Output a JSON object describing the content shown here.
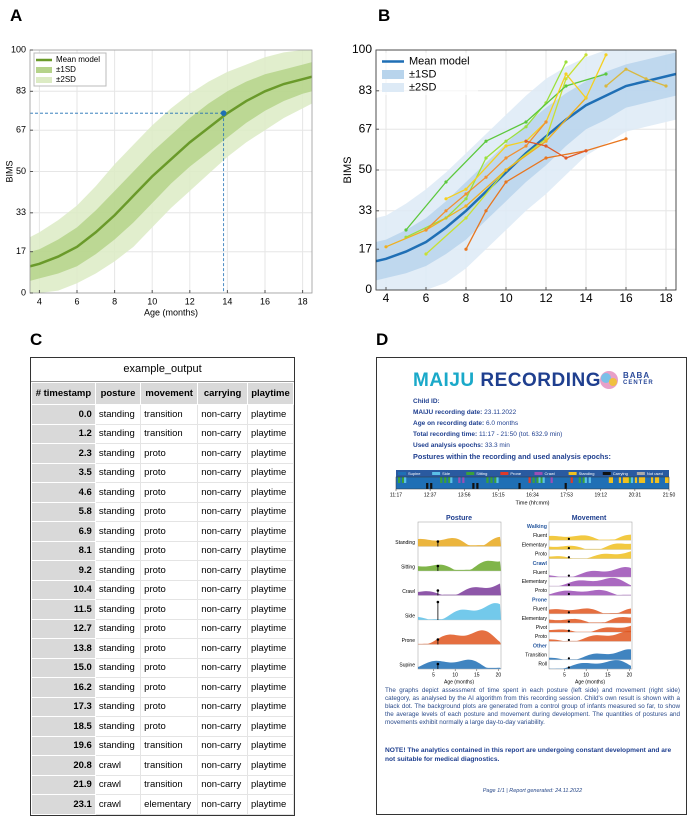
{
  "panel_labels": [
    "A",
    "B",
    "C",
    "D"
  ],
  "chart_data": [
    {
      "type": "line",
      "ylabel": "BIMS",
      "xlabel": "Age (months)",
      "x": [
        3.5,
        4,
        5,
        6,
        7,
        8,
        9,
        10,
        11,
        12,
        13,
        14,
        15,
        16,
        17,
        18,
        18.5
      ],
      "series": [
        {
          "name": "Mean model",
          "color": "#6a9a2a",
          "values": [
            11,
            12,
            15,
            19,
            25,
            32,
            40,
            48,
            55,
            62,
            68,
            74,
            79,
            83,
            86,
            88,
            89
          ]
        },
        {
          "name": "±1SD",
          "color": "#b5d38a",
          "upper": [
            17,
            18,
            22,
            27,
            34,
            42,
            50,
            58,
            65,
            72,
            78,
            83,
            87,
            90,
            92,
            94,
            95
          ],
          "lower": [
            5,
            6,
            8,
            11,
            16,
            22,
            29,
            37,
            45,
            52,
            58,
            64,
            70,
            75,
            79,
            82,
            83
          ]
        },
        {
          "name": "±2SD",
          "color": "#dcebc4",
          "upper": [
            23,
            25,
            30,
            36,
            44,
            53,
            61,
            69,
            76,
            82,
            87,
            91,
            94,
            97,
            99,
            100,
            100
          ],
          "lower": [
            0,
            0,
            1,
            4,
            8,
            13,
            19,
            27,
            35,
            42,
            49,
            56,
            62,
            67,
            72,
            76,
            78
          ]
        }
      ],
      "highlight": {
        "x": 13.8,
        "y": 74,
        "color": "#1f6fb5"
      },
      "xlim": [
        3.5,
        18.5
      ],
      "xticks": [
        4,
        6,
        8,
        10,
        12,
        14,
        16,
        18
      ],
      "ylim": [
        0,
        100
      ],
      "yticks": [
        0,
        17,
        33,
        50,
        67,
        83,
        100
      ],
      "grid": true,
      "legend": "top-left"
    },
    {
      "type": "line",
      "ylabel": "BIMS",
      "x": [
        3.5,
        4,
        5,
        6,
        7,
        8,
        9,
        10,
        11,
        12,
        13,
        14,
        15,
        16,
        17,
        18,
        18.5
      ],
      "series": [
        {
          "name": "Mean model",
          "color": "#1f6fb5",
          "values": [
            12,
            13,
            16,
            20,
            26,
            33,
            41,
            49,
            57,
            64,
            71,
            77,
            81,
            85,
            87,
            89,
            90
          ]
        },
        {
          "name": "±1SD",
          "color": "#b8d4ec",
          "upper": [
            20,
            21,
            25,
            30,
            37,
            45,
            53,
            61,
            69,
            76,
            82,
            87,
            91,
            94,
            96,
            98,
            99
          ],
          "lower": [
            4,
            5,
            7,
            10,
            15,
            21,
            29,
            37,
            45,
            52,
            60,
            67,
            71,
            76,
            78,
            80,
            81
          ]
        },
        {
          "name": "±2SD",
          "color": "#ddeaf6",
          "upper": [
            30,
            31,
            36,
            42,
            49,
            57,
            65,
            73,
            81,
            88,
            93,
            97,
            100,
            100,
            100,
            100,
            100
          ],
          "lower": [
            0,
            0,
            0,
            0,
            3,
            9,
            17,
            25,
            33,
            40,
            48,
            56,
            61,
            66,
            68,
            70,
            71
          ]
        },
        {
          "color": "#9be03c",
          "x": [
            5,
            7,
            8,
            9,
            10,
            11,
            12,
            13
          ],
          "values": [
            22,
            30,
            38,
            55,
            62,
            68,
            78,
            95
          ]
        },
        {
          "color": "#c8e034",
          "x": [
            6,
            8,
            10,
            12,
            13,
            14
          ],
          "values": [
            15,
            30,
            50,
            63,
            88,
            98
          ]
        },
        {
          "color": "#f0b020",
          "x": [
            4,
            6,
            8,
            10,
            12,
            14
          ],
          "values": [
            18,
            25,
            35,
            50,
            62,
            80
          ]
        },
        {
          "color": "#e8761e",
          "x": [
            8,
            9,
            10,
            12,
            14,
            16
          ],
          "values": [
            17,
            33,
            45,
            55,
            58,
            63
          ]
        },
        {
          "color": "#5cc83c",
          "x": [
            5,
            7,
            9,
            11,
            13,
            15
          ],
          "values": [
            25,
            45,
            62,
            70,
            85,
            90
          ]
        },
        {
          "color": "#f5d020",
          "x": [
            7,
            8,
            10,
            11,
            12,
            13,
            14,
            15
          ],
          "values": [
            38,
            42,
            60,
            62,
            70,
            90,
            80,
            98
          ]
        },
        {
          "color": "#f29030",
          "x": [
            6,
            7,
            8,
            9,
            10,
            11,
            12
          ],
          "values": [
            25,
            33,
            40,
            47,
            55,
            60,
            70
          ]
        },
        {
          "color": "#e05a28",
          "x": [
            11,
            12,
            13,
            14
          ],
          "values": [
            62,
            60,
            55,
            58
          ]
        },
        {
          "color": "#d8b840",
          "x": [
            15,
            16,
            17,
            18
          ],
          "values": [
            85,
            92,
            88,
            85
          ]
        }
      ],
      "xlim": [
        3.5,
        18.5
      ],
      "xticks": [
        4,
        6,
        8,
        10,
        12,
        14,
        16,
        18
      ],
      "ylim": [
        0,
        100
      ],
      "yticks": [
        0,
        17,
        33,
        50,
        67,
        83,
        100
      ],
      "grid": true,
      "legend": "top-left"
    }
  ],
  "table": {
    "title": "example_output",
    "columns": [
      "# timestamp",
      "posture",
      "movement",
      "carrying",
      "playtime"
    ],
    "rows": [
      [
        "0.0",
        "standing",
        "transition",
        "non-carry",
        "playtime"
      ],
      [
        "1.2",
        "standing",
        "transition",
        "non-carry",
        "playtime"
      ],
      [
        "2.3",
        "standing",
        "proto",
        "non-carry",
        "playtime"
      ],
      [
        "3.5",
        "standing",
        "proto",
        "non-carry",
        "playtime"
      ],
      [
        "4.6",
        "standing",
        "proto",
        "non-carry",
        "playtime"
      ],
      [
        "5.8",
        "standing",
        "proto",
        "non-carry",
        "playtime"
      ],
      [
        "6.9",
        "standing",
        "proto",
        "non-carry",
        "playtime"
      ],
      [
        "8.1",
        "standing",
        "proto",
        "non-carry",
        "playtime"
      ],
      [
        "9.2",
        "standing",
        "proto",
        "non-carry",
        "playtime"
      ],
      [
        "10.4",
        "standing",
        "proto",
        "non-carry",
        "playtime"
      ],
      [
        "11.5",
        "standing",
        "proto",
        "non-carry",
        "playtime"
      ],
      [
        "12.7",
        "standing",
        "proto",
        "non-carry",
        "playtime"
      ],
      [
        "13.8",
        "standing",
        "proto",
        "non-carry",
        "playtime"
      ],
      [
        "15.0",
        "standing",
        "proto",
        "non-carry",
        "playtime"
      ],
      [
        "16.2",
        "standing",
        "proto",
        "non-carry",
        "playtime"
      ],
      [
        "17.3",
        "standing",
        "proto",
        "non-carry",
        "playtime"
      ],
      [
        "18.5",
        "standing",
        "proto",
        "non-carry",
        "playtime"
      ],
      [
        "19.6",
        "standing",
        "transition",
        "non-carry",
        "playtime"
      ],
      [
        "20.8",
        "crawl",
        "transition",
        "non-carry",
        "playtime"
      ],
      [
        "21.9",
        "crawl",
        "transition",
        "non-carry",
        "playtime"
      ],
      [
        "23.1",
        "crawl",
        "elementary",
        "non-carry",
        "playtime"
      ]
    ]
  },
  "report": {
    "title_a": "MAIJU",
    "title_b": "RECORDING",
    "logo_a": "BABA",
    "logo_b": "CENTER",
    "child_id_label": "Child ID:",
    "fields": [
      {
        "label": "MAIJU recording date:",
        "value": "23.11.2022"
      },
      {
        "label": "Age on recording date:",
        "value": "6.0 months"
      },
      {
        "label": "Total recording time:",
        "value": "11:17 - 21:50 (tot. 632.9 min)"
      },
      {
        "label": "Used analysis epochs:",
        "value": "33.3 min"
      }
    ],
    "timeline_title": "Postures within the recording and used analysis epochs:",
    "timeline_legend": [
      {
        "name": "Supine",
        "color": "#1f6fb5"
      },
      {
        "name": "Side",
        "color": "#5bc0e8"
      },
      {
        "name": "Sitting",
        "color": "#3aa03a"
      },
      {
        "name": "Prone",
        "color": "#e03a2a"
      },
      {
        "name": "Crawl",
        "color": "#9b4fb5"
      },
      {
        "name": "Standing",
        "color": "#f0c020"
      },
      {
        "name": "Carrying",
        "color": "#111111"
      },
      {
        "name": "Not used",
        "color": "#aaaaaa"
      }
    ],
    "timeline_ticks": [
      "11:17",
      "12:37",
      "13:56",
      "15:15",
      "16:34",
      "17:53",
      "19:12",
      "20:31",
      "21:50"
    ],
    "timeline_xlabel": "Time (hh:mm)",
    "posture_panel": {
      "title": "Posture",
      "labels": [
        "Standing",
        "Sitting",
        "Crawl",
        "Side",
        "Prone",
        "Supine"
      ],
      "colors": [
        "#e8a81c",
        "#6aa82a",
        "#7a3a9a",
        "#5bc0e8",
        "#e0561e",
        "#1f6fb5"
      ],
      "xlim": [
        1.4,
        20.6
      ],
      "xticks": [
        5,
        10,
        15,
        20
      ],
      "xlabel": "Age (months)"
    },
    "movement_panel": {
      "title": "Movement",
      "groups": [
        {
          "name": "Walking",
          "color": "#f0c020",
          "items": [
            "Fluent",
            "Elementary",
            "Proto"
          ]
        },
        {
          "name": "Crawl",
          "color": "#9b4fb5",
          "items": [
            "Fluent",
            "Elementary",
            "Proto"
          ]
        },
        {
          "name": "Prone",
          "color": "#e0561e",
          "items": [
            "Fluent",
            "Elementary",
            "Pivot",
            "Proto"
          ]
        },
        {
          "name": "Other",
          "color": "#1f6fb5",
          "items": [
            "Transition",
            "Roll"
          ]
        }
      ],
      "xlim": [
        1.4,
        20.6
      ],
      "xticks": [
        5,
        10,
        15,
        20
      ],
      "xlabel": "Age (months)"
    },
    "caption": "The graphs depict assessment of time spent in each posture (left side) and movement (right side) category, as analysed by the AI algorithm from this recording session. Child's own result is shown with a black dot. The background plots are generated from a control group of infants measured so far, to show the average levels of each posture and movement during development. The quantities of postures and movements exhibit normally a large day-to-day variability.",
    "note": "NOTE! The analytics contained in this report are undergoing constant development and are not suitable for medical diagnostics.",
    "footer": "Page 1/1 | Report generated: 24.11.2022"
  }
}
